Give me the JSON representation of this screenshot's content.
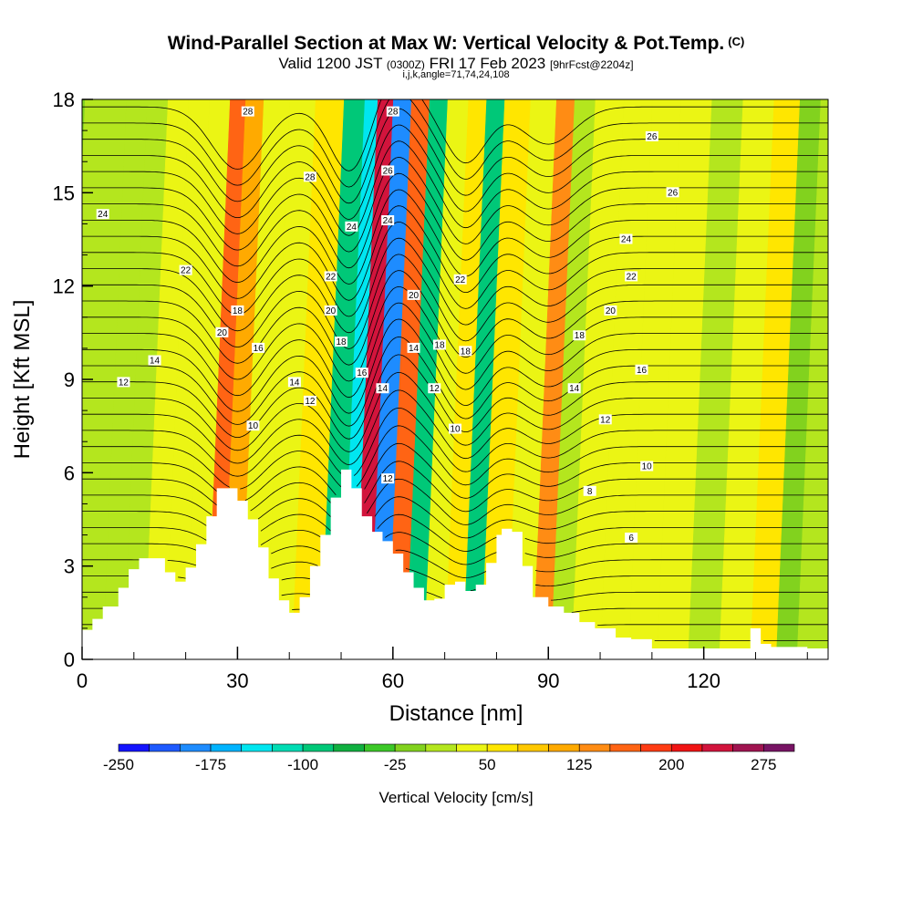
{
  "title": {
    "main": "Wind-Parallel Section at Max W: Vertical Velocity & Pot.Temp.",
    "copyright": "(C)",
    "valid_prefix": "Valid 1200 JST",
    "valid_utc": "(0300Z)",
    "valid_date": "FRI 17 Feb 2023",
    "forecast": "[9hrFcst@2204z]",
    "indices": "i,j,k,angle=71,74,24,108"
  },
  "chart_data": {
    "type": "heatmap",
    "xlabel": "Distance [nm]",
    "ylabel": "Height [Kft MSL]",
    "xlim": [
      0,
      144
    ],
    "ylim": [
      0,
      18
    ],
    "x_ticks": [
      0,
      30,
      60,
      90,
      120
    ],
    "y_ticks": [
      0,
      3,
      6,
      9,
      12,
      15,
      18
    ],
    "colorbar": {
      "label": "Vertical Velocity [cm/s]",
      "tick_labels": [
        "-250",
        "-175",
        "-100",
        "-25",
        "50",
        "125",
        "200",
        "275"
      ],
      "tick_values": [
        -250,
        -175,
        -100,
        -25,
        50,
        125,
        200,
        275
      ],
      "levels": [
        -250,
        -225,
        -200,
        -175,
        -150,
        -125,
        -100,
        -75,
        -50,
        -25,
        0,
        25,
        50,
        75,
        100,
        125,
        150,
        175,
        200,
        225,
        250,
        275,
        300
      ],
      "colors": [
        "#1414ff",
        "#1e5aff",
        "#1e8cff",
        "#00b4ff",
        "#00e6f0",
        "#00dcb4",
        "#00c878",
        "#10b040",
        "#3cc828",
        "#82d21e",
        "#b4e61e",
        "#ebf514",
        "#ffe600",
        "#ffc800",
        "#ffaa00",
        "#ff8c14",
        "#ff6414",
        "#ff3c14",
        "#f01414",
        "#d2143c",
        "#a01450",
        "#781464"
      ]
    },
    "terrain_kft": [
      [
        0,
        0.95
      ],
      [
        2,
        1.3
      ],
      [
        4,
        1.7
      ],
      [
        7,
        2.3
      ],
      [
        9,
        2.9
      ],
      [
        11,
        3.25
      ],
      [
        14,
        3.25
      ],
      [
        16,
        2.8
      ],
      [
        18,
        2.5
      ],
      [
        20,
        2.95
      ],
      [
        22,
        3.7
      ],
      [
        24,
        4.6
      ],
      [
        26,
        5.5
      ],
      [
        28,
        5.5
      ],
      [
        30,
        5.1
      ],
      [
        32,
        4.5
      ],
      [
        34,
        3.6
      ],
      [
        36,
        2.6
      ],
      [
        38,
        1.9
      ],
      [
        40,
        1.5
      ],
      [
        42,
        2.0
      ],
      [
        44,
        3.0
      ],
      [
        46,
        4.0
      ],
      [
        48,
        5.2
      ],
      [
        50,
        6.1
      ],
      [
        52,
        5.5
      ],
      [
        54,
        4.6
      ],
      [
        56,
        4.1
      ],
      [
        58,
        3.8
      ],
      [
        60,
        3.4
      ],
      [
        62,
        2.8
      ],
      [
        64,
        2.3
      ],
      [
        66,
        1.9
      ],
      [
        68,
        1.95
      ],
      [
        70,
        2.4
      ],
      [
        72,
        2.5
      ],
      [
        74,
        2.2
      ],
      [
        76,
        2.4
      ],
      [
        78,
        3.1
      ],
      [
        80,
        4.0
      ],
      [
        81,
        4.2
      ],
      [
        83,
        4.1
      ],
      [
        85,
        3.0
      ],
      [
        87,
        2.0
      ],
      [
        90,
        1.7
      ],
      [
        93,
        1.5
      ],
      [
        96,
        1.2
      ],
      [
        99,
        1.0
      ],
      [
        103,
        0.7
      ],
      [
        106,
        0.65
      ],
      [
        110,
        0.35
      ],
      [
        116,
        0.35
      ],
      [
        120,
        0.35
      ],
      [
        128,
        0.35
      ],
      [
        129,
        1.0
      ],
      [
        130,
        1.0
      ],
      [
        131,
        0.5
      ],
      [
        133,
        0.4
      ],
      [
        140,
        0.35
      ],
      [
        144,
        0.35
      ]
    ],
    "w_bands_cm_s": [
      {
        "x": 2,
        "w": 5
      },
      {
        "x": 6,
        "w": 15
      },
      {
        "x": 10,
        "w": 20
      },
      {
        "x": 14,
        "w": 25
      },
      {
        "x": 18,
        "w": 35
      },
      {
        "x": 22,
        "w": 30
      },
      {
        "x": 26,
        "w": 150
      },
      {
        "x": 28,
        "w": 110
      },
      {
        "x": 33,
        "w": 40
      },
      {
        "x": 38,
        "w": 25
      },
      {
        "x": 43,
        "w": 50
      },
      {
        "x": 49,
        "w": -100
      },
      {
        "x": 51,
        "w": -150
      },
      {
        "x": 54,
        "w": 230
      },
      {
        "x": 57,
        "w": -180
      },
      {
        "x": 61,
        "w": 170
      },
      {
        "x": 64,
        "w": -80
      },
      {
        "x": 68,
        "w": 40
      },
      {
        "x": 72,
        "w": 60
      },
      {
        "x": 75,
        "w": -90
      },
      {
        "x": 79,
        "w": 60
      },
      {
        "x": 85,
        "w": 40
      },
      {
        "x": 89,
        "w": 130
      },
      {
        "x": 92,
        "w": 0
      },
      {
        "x": 97,
        "w": 25
      },
      {
        "x": 103,
        "w": 45
      },
      {
        "x": 108,
        "w": 30
      },
      {
        "x": 114,
        "w": 35
      },
      {
        "x": 120,
        "w": 15
      },
      {
        "x": 126,
        "w": 30
      },
      {
        "x": 132,
        "w": 50
      },
      {
        "x": 136,
        "w": -5
      },
      {
        "x": 140,
        "w": 20
      }
    ],
    "theta_contour_labels": [
      {
        "text": "28",
        "x": 32,
        "y": 17.6
      },
      {
        "text": "28",
        "x": 60,
        "y": 17.6
      },
      {
        "text": "26",
        "x": 110,
        "y": 16.8
      },
      {
        "text": "28",
        "x": 44,
        "y": 15.5
      },
      {
        "text": "26",
        "x": 59,
        "y": 15.7
      },
      {
        "text": "26",
        "x": 114,
        "y": 15.0
      },
      {
        "text": "24",
        "x": 4,
        "y": 14.3
      },
      {
        "text": "24",
        "x": 52,
        "y": 13.9
      },
      {
        "text": "24",
        "x": 59,
        "y": 14.1
      },
      {
        "text": "24",
        "x": 105,
        "y": 13.5
      },
      {
        "text": "22",
        "x": 20,
        "y": 12.5
      },
      {
        "text": "22",
        "x": 48,
        "y": 12.3
      },
      {
        "text": "22",
        "x": 73,
        "y": 12.2
      },
      {
        "text": "22",
        "x": 106,
        "y": 12.3
      },
      {
        "text": "20",
        "x": 64,
        "y": 11.7
      },
      {
        "text": "18",
        "x": 30,
        "y": 11.2
      },
      {
        "text": "20",
        "x": 48,
        "y": 11.2
      },
      {
        "text": "20",
        "x": 102,
        "y": 11.2
      },
      {
        "text": "20",
        "x": 27,
        "y": 10.5
      },
      {
        "text": "18",
        "x": 50,
        "y": 10.2
      },
      {
        "text": "18",
        "x": 69,
        "y": 10.1
      },
      {
        "text": "18",
        "x": 96,
        "y": 10.4
      },
      {
        "text": "16",
        "x": 34,
        "y": 10.0
      },
      {
        "text": "14",
        "x": 64,
        "y": 10.0
      },
      {
        "text": "18",
        "x": 74,
        "y": 9.9
      },
      {
        "text": "14",
        "x": 14,
        "y": 9.6
      },
      {
        "text": "16",
        "x": 54,
        "y": 9.2
      },
      {
        "text": "16",
        "x": 108,
        "y": 9.3
      },
      {
        "text": "12",
        "x": 8,
        "y": 8.9
      },
      {
        "text": "14",
        "x": 41,
        "y": 8.9
      },
      {
        "text": "14",
        "x": 58,
        "y": 8.7
      },
      {
        "text": "12",
        "x": 68,
        "y": 8.7
      },
      {
        "text": "14",
        "x": 95,
        "y": 8.7
      },
      {
        "text": "12",
        "x": 44,
        "y": 8.3
      },
      {
        "text": "10",
        "x": 33,
        "y": 7.5
      },
      {
        "text": "12",
        "x": 101,
        "y": 7.7
      },
      {
        "text": "10",
        "x": 72,
        "y": 7.4
      },
      {
        "text": "10",
        "x": 109,
        "y": 6.2
      },
      {
        "text": "12",
        "x": 59,
        "y": 5.8
      },
      {
        "text": "8",
        "x": 98,
        "y": 5.4
      },
      {
        "text": "6",
        "x": 106,
        "y": 3.9
      }
    ]
  }
}
